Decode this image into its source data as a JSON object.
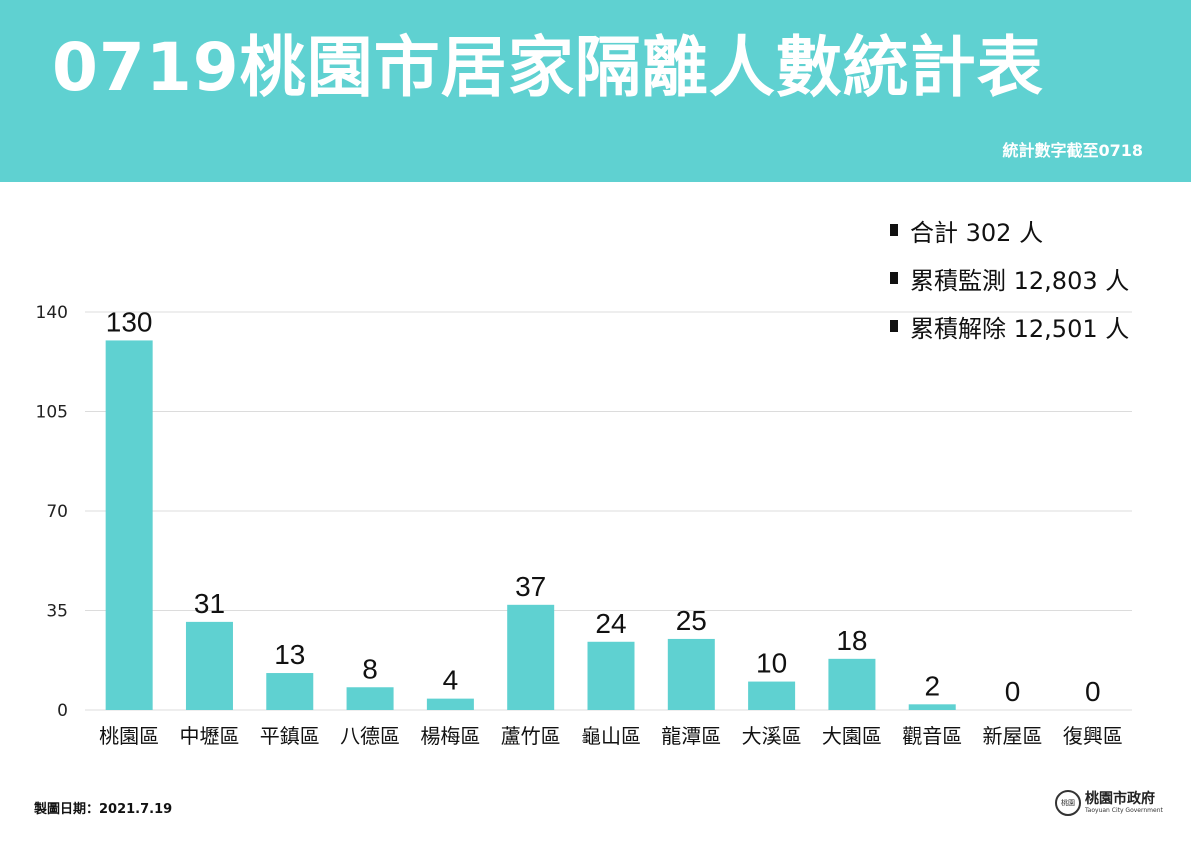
{
  "header": {
    "title": "0719桃園市居家隔離人數統計表",
    "subtitle": "統計數字截至0718"
  },
  "summary": [
    {
      "label": "合計 302 人"
    },
    {
      "label": "累積監測 12,803 人"
    },
    {
      "label": "累積解除 12,501 人"
    }
  ],
  "chart_data": {
    "type": "bar",
    "title": "",
    "xlabel": "",
    "ylabel": "",
    "categories": [
      "桃園區",
      "中壢區",
      "平鎮區",
      "八德區",
      "楊梅區",
      "蘆竹區",
      "龜山區",
      "龍潭區",
      "大溪區",
      "大園區",
      "觀音區",
      "新屋區",
      "復興區"
    ],
    "values": [
      130,
      31,
      13,
      8,
      4,
      37,
      24,
      25,
      10,
      18,
      2,
      0,
      0
    ],
    "ylim": [
      0,
      140
    ],
    "yticks": [
      0,
      35,
      70,
      105,
      140
    ],
    "grid": true,
    "bar_color": "#5fd1d1"
  },
  "footer": {
    "date_label": "製圖日期：2021.7.19",
    "logo_name": "桃園市政府",
    "logo_en": "Taoyuan City Government",
    "seal_text": "桃園"
  },
  "colors": {
    "accent": "#5fd1d1",
    "text": "#111111"
  }
}
